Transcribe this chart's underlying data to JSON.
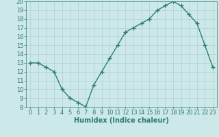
{
  "x": [
    0,
    1,
    2,
    3,
    4,
    5,
    6,
    7,
    8,
    9,
    10,
    11,
    12,
    13,
    14,
    15,
    16,
    17,
    18,
    19,
    20,
    21,
    22,
    23
  ],
  "y": [
    13,
    13,
    12.5,
    12,
    10,
    9,
    8.5,
    8,
    10.5,
    12,
    13.5,
    15,
    16.5,
    17,
    17.5,
    18,
    19,
    19.5,
    20,
    19.5,
    18.5,
    17.5,
    15,
    12.5
  ],
  "line_color": "#2e7d6e",
  "marker": "+",
  "marker_size": 4,
  "bg_color": "#cce8e8",
  "grid_color": "#b0d0d0",
  "xlabel": "Humidex (Indice chaleur)",
  "ylabel": "",
  "xlim": [
    -0.5,
    23.5
  ],
  "ylim": [
    8,
    20
  ],
  "yticks": [
    8,
    9,
    10,
    11,
    12,
    13,
    14,
    15,
    16,
    17,
    18,
    19,
    20
  ],
  "xticks": [
    0,
    1,
    2,
    3,
    4,
    5,
    6,
    7,
    8,
    9,
    10,
    11,
    12,
    13,
    14,
    15,
    16,
    17,
    18,
    19,
    20,
    21,
    22,
    23
  ],
  "tick_color": "#2e7d6e",
  "label_color": "#2e7d6e",
  "xlabel_fontsize": 7,
  "tick_fontsize": 6,
  "line_width": 1.0
}
